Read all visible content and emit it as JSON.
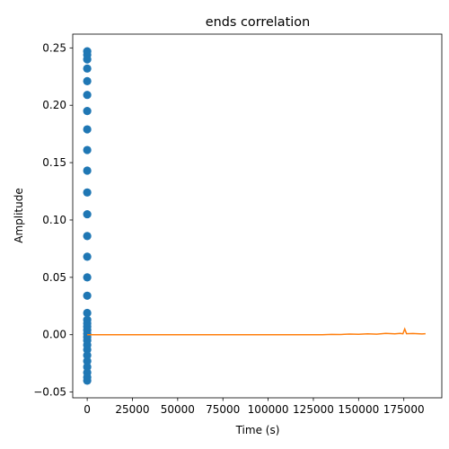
{
  "chart_data": {
    "type": "scatter",
    "title": "ends correlation",
    "xlabel": "Time (s)",
    "ylabel": "Amplitude",
    "xlim": [
      -8000,
      196000
    ],
    "ylim": [
      -0.055,
      0.262
    ],
    "xticks": [
      0,
      25000,
      50000,
      75000,
      100000,
      125000,
      150000,
      175000
    ],
    "xtick_labels": [
      "0",
      "25000",
      "50000",
      "75000",
      "100000",
      "125000",
      "150000",
      "175000"
    ],
    "yticks": [
      -0.05,
      0.0,
      0.05,
      0.1,
      0.15,
      0.2,
      0.25
    ],
    "ytick_labels": [
      "−0.05",
      "0.00",
      "0.05",
      "0.10",
      "0.15",
      "0.20",
      "0.25"
    ],
    "grid": false,
    "series": [
      {
        "kind": "scatter",
        "color": "#1f77b4",
        "points": [
          [
            0,
            0.247
          ],
          [
            0,
            0.244
          ],
          [
            0,
            0.24
          ],
          [
            0,
            0.232
          ],
          [
            0,
            0.221
          ],
          [
            0,
            0.209
          ],
          [
            0,
            0.195
          ],
          [
            0,
            0.179
          ],
          [
            0,
            0.161
          ],
          [
            0,
            0.143
          ],
          [
            0,
            0.124
          ],
          [
            0,
            0.105
          ],
          [
            0,
            0.086
          ],
          [
            0,
            0.068
          ],
          [
            0,
            0.05
          ],
          [
            0,
            0.034
          ],
          [
            0,
            0.019
          ],
          [
            0,
            0.013
          ],
          [
            0,
            0.01
          ],
          [
            0,
            0.007
          ],
          [
            0,
            0.004
          ],
          [
            0,
            0.001
          ],
          [
            0,
            -0.002
          ],
          [
            0,
            -0.005
          ],
          [
            0,
            -0.009
          ],
          [
            0,
            -0.013
          ],
          [
            0,
            -0.018
          ],
          [
            0,
            -0.023
          ],
          [
            0,
            -0.028
          ],
          [
            0,
            -0.033
          ],
          [
            0,
            -0.037
          ],
          [
            0,
            -0.04
          ]
        ]
      },
      {
        "kind": "line",
        "color": "#ff7f0e",
        "points": [
          [
            0,
            0.0
          ],
          [
            20000,
            0.0
          ],
          [
            40000,
            0.0
          ],
          [
            60000,
            0.0
          ],
          [
            80000,
            0.0
          ],
          [
            100000,
            0.0
          ],
          [
            120000,
            0.0
          ],
          [
            130000,
            0.0
          ],
          [
            135000,
            0.0003
          ],
          [
            140000,
            0.0002
          ],
          [
            145000,
            0.0006
          ],
          [
            150000,
            0.0004
          ],
          [
            155000,
            0.0008
          ],
          [
            160000,
            0.0005
          ],
          [
            165000,
            0.0012
          ],
          [
            170000,
            0.0008
          ],
          [
            173000,
            0.0012
          ],
          [
            174500,
            0.0008
          ],
          [
            175500,
            0.005
          ],
          [
            176500,
            0.0009
          ],
          [
            180000,
            0.0011
          ],
          [
            185000,
            0.0007
          ],
          [
            187000,
            0.0009
          ]
        ]
      }
    ]
  }
}
